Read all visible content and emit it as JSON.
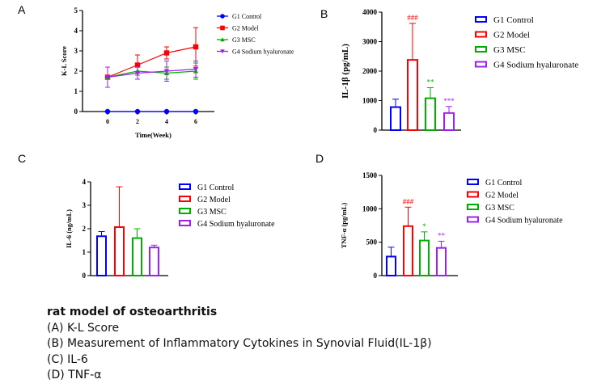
{
  "colors": {
    "G1": "#0000ff",
    "G2": "#ff0000",
    "G3": "#00b000",
    "G4": "#a020f0"
  },
  "chart_data": [
    {
      "panel": "A",
      "type": "line",
      "xlabel": "Time(Week)",
      "ylabel": "K-L Score",
      "x": [
        0,
        2,
        4,
        6
      ],
      "xticks": [
        "0",
        "2",
        "4",
        "6"
      ],
      "yticks": [
        "0",
        "1",
        "2",
        "3",
        "4",
        "5"
      ],
      "ylim": [
        0,
        5
      ],
      "legend_position": "right",
      "series": [
        {
          "name": "G1 Control",
          "key": "G1",
          "marker": "circle",
          "values": [
            0,
            0,
            0,
            0
          ],
          "errors": [
            0,
            0,
            0,
            0
          ]
        },
        {
          "name": "G2 Model",
          "key": "G2",
          "marker": "square",
          "values": [
            1.7,
            2.3,
            2.9,
            3.2
          ],
          "errors": [
            0.5,
            0.5,
            0.3,
            0.95
          ]
        },
        {
          "name": "G3 MSC",
          "key": "G3",
          "marker": "triangle-up",
          "values": [
            1.7,
            2.0,
            1.9,
            2.0
          ],
          "errors": [
            0.5,
            0.2,
            0.3,
            0.4
          ]
        },
        {
          "name": "G4 Sodium hyaluronate",
          "key": "G4",
          "marker": "triangle-down",
          "values": [
            1.7,
            1.9,
            2.0,
            2.1
          ],
          "errors": [
            0.5,
            0.3,
            0.5,
            0.4
          ]
        }
      ]
    },
    {
      "panel": "B",
      "type": "bar",
      "ylabel": "IL-1β (pg/mL)",
      "yticks": [
        "0",
        "1000",
        "2000",
        "3000",
        "4000"
      ],
      "ylim": [
        0,
        4000
      ],
      "legend_position": "right",
      "series": [
        {
          "name": "G1 Control",
          "key": "G1",
          "value": 780,
          "error": 270,
          "annotation": ""
        },
        {
          "name": "G2 Model",
          "key": "G2",
          "value": 2380,
          "error": 1240,
          "annotation": "###"
        },
        {
          "name": "G3 MSC",
          "key": "G3",
          "value": 1080,
          "error": 360,
          "annotation": "**"
        },
        {
          "name": "G4 Sodium hyaluronate",
          "key": "G4",
          "value": 580,
          "error": 220,
          "annotation": "***"
        }
      ]
    },
    {
      "panel": "C",
      "type": "bar",
      "ylabel": "IL-6 (ng/mL)",
      "yticks": [
        "0",
        "1",
        "2",
        "3",
        "4"
      ],
      "ylim": [
        0,
        4
      ],
      "legend_position": "right",
      "series": [
        {
          "name": "G1 Control",
          "key": "G1",
          "value": 1.68,
          "error": 0.2,
          "annotation": ""
        },
        {
          "name": "G2 Model",
          "key": "G2",
          "value": 2.07,
          "error": 1.72,
          "annotation": ""
        },
        {
          "name": "G3 MSC",
          "key": "G3",
          "value": 1.6,
          "error": 0.4,
          "annotation": ""
        },
        {
          "name": "G4 Sodium hyaluronate",
          "key": "G4",
          "value": 1.2,
          "error": 0.1,
          "annotation": ""
        }
      ]
    },
    {
      "panel": "D",
      "type": "bar",
      "ylabel": "TNF-α (pg/mL)",
      "yticks": [
        "0",
        "500",
        "1000",
        "1500"
      ],
      "ylim": [
        0,
        1500
      ],
      "legend_position": "right",
      "series": [
        {
          "name": "G1 Control",
          "key": "G1",
          "value": 285,
          "error": 140,
          "annotation": ""
        },
        {
          "name": "G2 Model",
          "key": "G2",
          "value": 740,
          "error": 285,
          "annotation": "###"
        },
        {
          "name": "G3 MSC",
          "key": "G3",
          "value": 525,
          "error": 130,
          "annotation": "*"
        },
        {
          "name": "G4 Sodium hyaluronate",
          "key": "G4",
          "value": 415,
          "error": 100,
          "annotation": "**"
        }
      ]
    }
  ],
  "caption": {
    "title": "rat model of osteoarthritis",
    "lines": [
      "(A) K-L Score",
      "(B) Measurement of Inflammatory Cytokines in Synovial Fluid(IL-1β)",
      "(C) IL-6",
      "(D) TNF-α"
    ]
  }
}
